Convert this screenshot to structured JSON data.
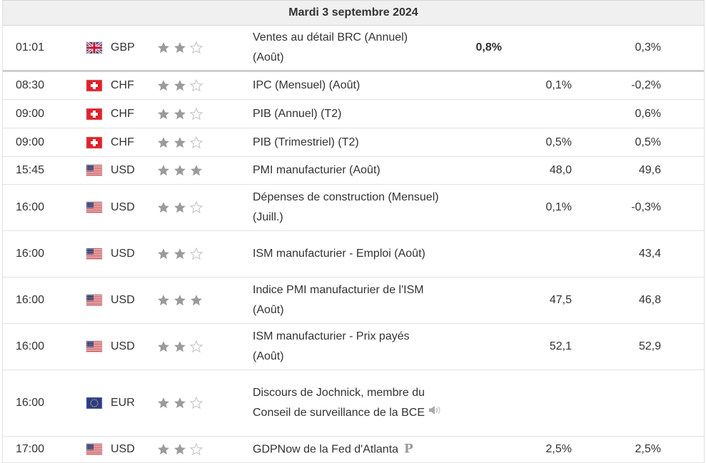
{
  "day_header": "Mardi 3 septembre 2024",
  "colors": {
    "star_filled": "#9b9b9b",
    "star_empty": "#c8c8c8"
  },
  "events": [
    {
      "time": "01:01",
      "flag": "uk-flag-icon",
      "currency": "GBP",
      "importance": 2,
      "event": "Ventes au détail BRC (Annuel) (Août)",
      "actual": "0,8%",
      "forecast": "",
      "previous": "0,3%"
    },
    {
      "time": "08:30",
      "flag": "swiss-flag-icon",
      "currency": "CHF",
      "importance": 2,
      "event": "IPC (Mensuel) (Août)",
      "actual": "",
      "forecast": "0,1%",
      "previous": "-0,2%"
    },
    {
      "time": "09:00",
      "flag": "swiss-flag-icon",
      "currency": "CHF",
      "importance": 2,
      "event": "PIB (Annuel) (T2)",
      "actual": "",
      "forecast": "",
      "previous": "0,6%"
    },
    {
      "time": "09:00",
      "flag": "swiss-flag-icon",
      "currency": "CHF",
      "importance": 2,
      "event": "PIB (Trimestriel) (T2)",
      "actual": "",
      "forecast": "0,5%",
      "previous": "0,5%"
    },
    {
      "time": "15:45",
      "flag": "us-flag-icon",
      "currency": "USD",
      "importance": 3,
      "event": "PMI manufacturier (Août)",
      "actual": "",
      "forecast": "48,0",
      "previous": "49,6"
    },
    {
      "time": "16:00",
      "flag": "us-flag-icon",
      "currency": "USD",
      "importance": 2,
      "event": "Dépenses de construction (Mensuel) (Juill.)",
      "actual": "",
      "forecast": "0,1%",
      "previous": "-0,3%"
    },
    {
      "time": "16:00",
      "flag": "us-flag-icon",
      "currency": "USD",
      "importance": 2,
      "event": "ISM manufacturier - Emploi (Août)",
      "actual": "",
      "forecast": "",
      "previous": "43,4"
    },
    {
      "time": "16:00",
      "flag": "us-flag-icon",
      "currency": "USD",
      "importance": 3,
      "event": "Indice PMI manufacturier de l'ISM (Août)",
      "actual": "",
      "forecast": "47,5",
      "previous": "46,8"
    },
    {
      "time": "16:00",
      "flag": "us-flag-icon",
      "currency": "USD",
      "importance": 2,
      "event": "ISM manufacturier - Prix payés (Août)",
      "actual": "",
      "forecast": "52,1",
      "previous": "52,9"
    },
    {
      "time": "16:00",
      "flag": "eu-flag-icon",
      "currency": "EUR",
      "importance": 2,
      "event": "Discours de Jochnick, membre du Conseil de surveillance de la BCE",
      "actual": "",
      "forecast": "",
      "previous": "",
      "icon": "speaker-icon"
    },
    {
      "time": "17:00",
      "flag": "us-flag-icon",
      "currency": "USD",
      "importance": 2,
      "event": "GDPNow de la Fed d'Atlanta",
      "actual": "",
      "forecast": "2,5%",
      "previous": "2,5%",
      "icon": "preliminary-icon",
      "icon_text": "P"
    }
  ]
}
